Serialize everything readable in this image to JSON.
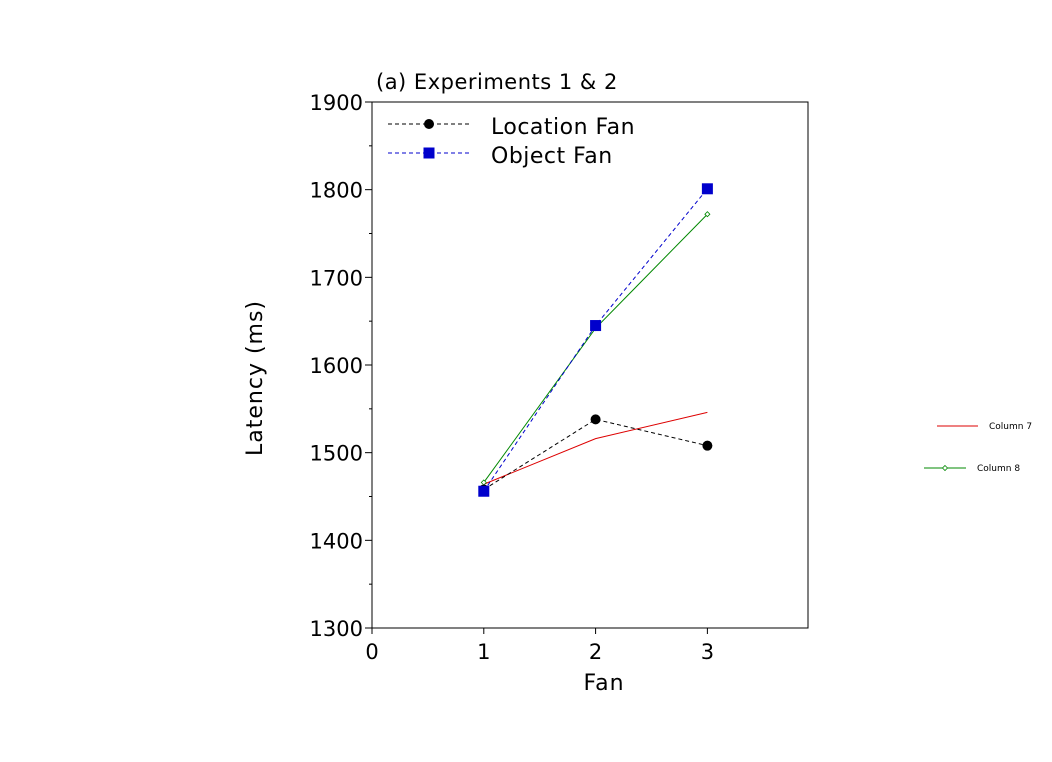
{
  "chart_data": {
    "type": "line",
    "title": "(a) Experiments 1 & 2",
    "xlabel": "Fan",
    "ylabel": "Latency (ms)",
    "xlim": [
      0,
      3.9
    ],
    "ylim": [
      1300,
      1900
    ],
    "x_ticks": [
      0,
      1,
      2,
      3
    ],
    "y_ticks": [
      1300,
      1400,
      1500,
      1600,
      1700,
      1800,
      1900
    ],
    "y_minor_step": 50,
    "grid": false,
    "legend_position": "top-left",
    "series": [
      {
        "name": "Location Fan",
        "x": [
          1,
          2,
          3
        ],
        "values": [
          1458,
          1538,
          1508
        ],
        "color": "#000000",
        "dash": true,
        "marker": "circle"
      },
      {
        "name": "Object Fan",
        "x": [
          1,
          2,
          3
        ],
        "values": [
          1456,
          1645,
          1801
        ],
        "color": "#0000cc",
        "dash": true,
        "marker": "square"
      },
      {
        "name": "Column 7",
        "x": [
          1,
          2,
          3
        ],
        "values": [
          1464,
          1516,
          1546
        ],
        "color": "#dd0000",
        "dash": false,
        "marker": "none"
      },
      {
        "name": "Column 8",
        "x": [
          1,
          2,
          3
        ],
        "values": [
          1466,
          1642,
          1772
        ],
        "color": "#008800",
        "dash": false,
        "marker": "diamond"
      }
    ],
    "main_legend": [
      "Location Fan",
      "Object Fan"
    ],
    "side_legend": [
      "Column 7",
      "Column 8"
    ],
    "side_legend_position": "right"
  }
}
